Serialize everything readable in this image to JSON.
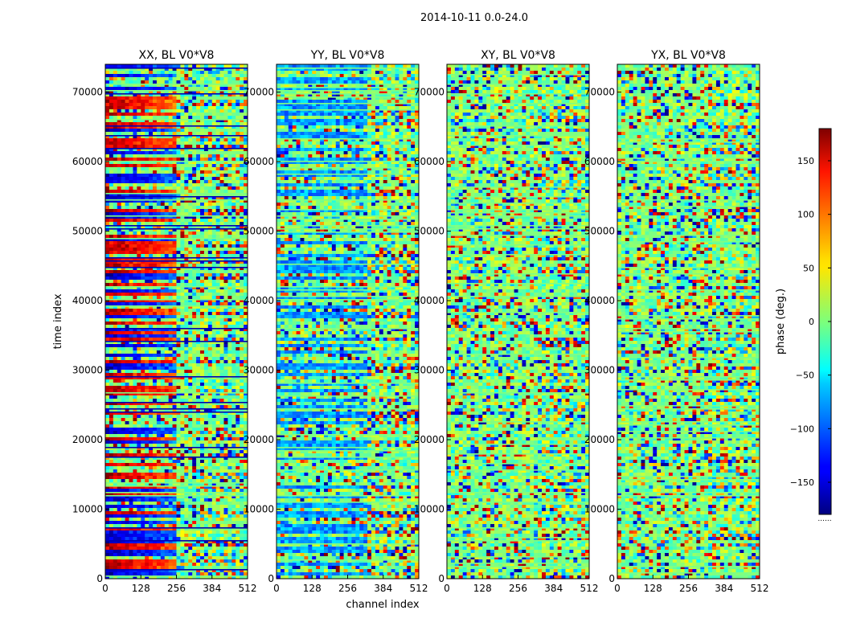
{
  "figure": {
    "suptitle": "2014-10-11 0.0-24.0"
  },
  "chart_data": {
    "type": "heatmap",
    "panels": [
      {
        "title": "XX, BL V0*V8",
        "polarization": "XX"
      },
      {
        "title": "YY, BL V0*V8",
        "polarization": "YY"
      },
      {
        "title": "XY, BL V0*V8",
        "polarization": "XY"
      },
      {
        "title": "YX, BL V0*V8",
        "polarization": "YX"
      }
    ],
    "xlabel": "channel index",
    "ylabel": "time index",
    "xlim": [
      0,
      512
    ],
    "ylim": [
      0,
      74000
    ],
    "xticks": [
      0,
      128,
      256,
      384,
      512
    ],
    "yticks": [
      0,
      10000,
      20000,
      30000,
      40000,
      50000,
      60000,
      70000
    ],
    "colorbar": {
      "label": "phase (deg.)",
      "range": [
        -180,
        180
      ],
      "ticks": [
        -150,
        -100,
        -50,
        0,
        50,
        100,
        150
      ],
      "ticklabels": [
        "−150",
        "−100",
        "−50",
        "0",
        "50",
        "100",
        "150"
      ],
      "colormap": "jet",
      "footer": "......"
    }
  }
}
